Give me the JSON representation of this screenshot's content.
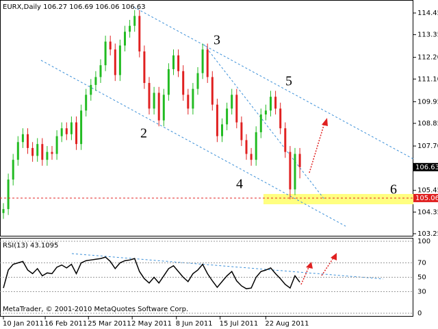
{
  "chart_data": [
    {
      "type": "candlestick",
      "title": "EURX,Daily 106.27 106.69 106.06 106.63",
      "open": [
        104.3,
        104.5,
        106.0,
        107.0,
        107.9,
        108.3,
        107.6,
        107.2,
        107.8,
        107.0,
        107.4,
        107.3,
        108.2,
        108.6,
        108.3,
        108.9,
        107.8,
        109.5,
        110.3,
        110.8,
        111.2,
        111.8,
        113.0,
        112.6,
        111.3,
        112.8,
        113.5,
        113.8,
        114.3,
        112.5,
        110.9,
        109.6,
        110.4,
        109.0,
        110.3,
        111.6,
        112.3,
        111.5,
        110.3,
        109.6,
        110.6,
        111.4,
        112.6,
        111.2,
        109.8,
        108.2,
        108.8,
        109.6,
        110.3,
        108.9,
        108.0,
        107.3,
        107.0,
        108.4,
        109.3,
        109.5,
        110.2,
        109.6,
        108.6,
        107.4,
        105.5,
        107.3
      ],
      "high": [
        104.8,
        106.3,
        107.3,
        108.2,
        108.6,
        108.6,
        107.9,
        108.1,
        108.1,
        107.7,
        107.7,
        108.5,
        108.9,
        108.9,
        109.2,
        109.2,
        109.8,
        110.6,
        111.1,
        111.5,
        112.1,
        113.3,
        113.3,
        112.9,
        113.1,
        113.8,
        114.1,
        114.6,
        114.6,
        112.8,
        111.2,
        110.7,
        110.7,
        110.6,
        111.9,
        112.6,
        112.6,
        111.8,
        110.6,
        110.9,
        111.7,
        112.9,
        112.9,
        111.5,
        110.1,
        109.1,
        109.9,
        110.6,
        110.6,
        109.2,
        108.3,
        107.6,
        108.7,
        109.6,
        109.8,
        110.5,
        110.5,
        109.9,
        108.9,
        107.7,
        107.6,
        107.6
      ],
      "low": [
        104.0,
        104.2,
        105.7,
        106.7,
        107.6,
        107.3,
        106.9,
        106.9,
        106.7,
        106.7,
        107.0,
        107.0,
        107.9,
        108.0,
        108.0,
        107.5,
        107.5,
        109.2,
        110.0,
        110.5,
        110.9,
        111.5,
        112.3,
        111.0,
        111.0,
        112.5,
        113.2,
        113.5,
        112.2,
        110.6,
        109.3,
        109.3,
        108.7,
        108.7,
        110.0,
        111.3,
        111.2,
        110.0,
        109.3,
        109.3,
        110.3,
        111.1,
        110.9,
        109.5,
        107.9,
        107.9,
        108.5,
        109.3,
        108.6,
        107.7,
        107.0,
        106.7,
        106.7,
        108.1,
        109.0,
        109.2,
        109.3,
        108.3,
        107.1,
        105.0,
        105.2,
        106.06
      ],
      "close": [
        104.5,
        106.0,
        107.0,
        107.9,
        108.3,
        107.6,
        107.2,
        107.8,
        107.0,
        107.4,
        107.3,
        108.2,
        108.6,
        108.3,
        108.9,
        107.8,
        109.5,
        110.3,
        110.8,
        111.2,
        111.8,
        113.0,
        112.6,
        111.3,
        112.8,
        113.5,
        113.8,
        114.3,
        112.5,
        110.9,
        109.6,
        110.4,
        109.0,
        110.3,
        111.6,
        112.3,
        111.5,
        110.3,
        109.6,
        110.6,
        111.4,
        112.6,
        111.2,
        109.8,
        108.2,
        108.8,
        109.6,
        110.3,
        108.9,
        108.0,
        107.3,
        107.0,
        108.4,
        109.3,
        109.5,
        110.2,
        109.6,
        108.6,
        107.4,
        105.5,
        107.3,
        106.63
      ],
      "up_color": "#22bb22",
      "down_color": "#e02020",
      "ylim": [
        103.11,
        115.11
      ],
      "yticks": [
        114.45,
        113.35,
        {
          "value": 112.2,
          "label": "112.20"
        },
        {
          "value": 111.1,
          "label": "111.10"
        },
        109.95,
        108.85,
        {
          "value": 107.7,
          "label": "107.70"
        },
        105.45,
        104.35,
        103.25
      ],
      "xticks": [
        {
          "value": 0,
          "label": "10 Jan 2011"
        },
        {
          "value": 8.6,
          "label": "16 Feb 2011"
        },
        {
          "value": 17.5,
          "label": "25 Mar 2011"
        },
        {
          "value": 26.5,
          "label": "2 May 2011"
        },
        {
          "value": 35.6,
          "label": "8 Jun 2011"
        },
        {
          "value": 44.6,
          "label": "15 Jul 2011"
        },
        {
          "value": 54,
          "label": "22 Aug 2011"
        }
      ],
      "last_price": {
        "value": 106.63,
        "label": "106.63"
      },
      "level": {
        "value": 105.06,
        "label": "105.06"
      },
      "annotations": [
        "2",
        "3",
        "4",
        "5",
        "6"
      ]
    },
    {
      "type": "line",
      "title": "RSI(13) 43.1095",
      "values": [
        35,
        60,
        68,
        70,
        72,
        60,
        55,
        62,
        52,
        56,
        55,
        64,
        67,
        63,
        68,
        55,
        70,
        73,
        74,
        75,
        76,
        78,
        72,
        62,
        70,
        73,
        74,
        76,
        58,
        48,
        42,
        50,
        42,
        52,
        62,
        66,
        58,
        50,
        44,
        55,
        60,
        68,
        55,
        45,
        36,
        44,
        52,
        58,
        45,
        38,
        34,
        35,
        50,
        58,
        60,
        63,
        55,
        48,
        40,
        35,
        52,
        43.1095
      ],
      "color": "#000000",
      "ylim": [
        -4.8,
        104.8
      ],
      "yticks": [
        100,
        70,
        50,
        30,
        0
      ]
    }
  ],
  "footer": "MetaTrader, © 2001-2010 MetaQuotes Software Corp."
}
